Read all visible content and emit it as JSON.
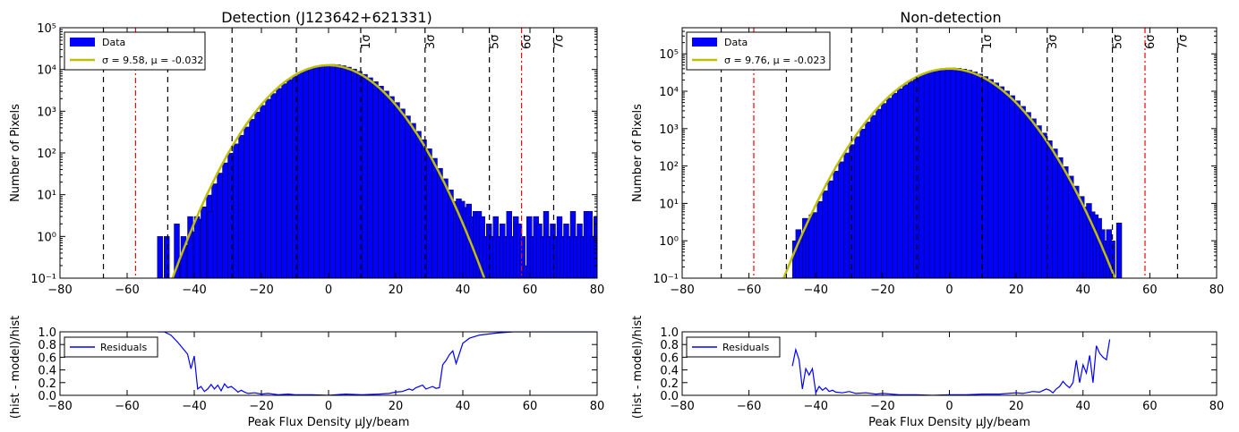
{
  "chart_data": [
    {
      "type": "bar",
      "title": "Detection (J123642+621331)",
      "xlabel": "",
      "ylabel": "Number of Pixels",
      "xlim": [
        -80,
        80
      ],
      "ylim": [
        0.1,
        100000
      ],
      "yscale": "log",
      "xticks": [
        "−80",
        "−60",
        "−40",
        "−20",
        "0",
        "20",
        "40",
        "60",
        "80"
      ],
      "yticks": [
        "10⁻¹",
        "10⁰",
        "10¹",
        "10²",
        "10³",
        "10⁴",
        "10⁵"
      ],
      "bar_color": "#0000ff",
      "fit_color": "#bfbf00",
      "legend_position": "top-left",
      "legend": {
        "data": "Data",
        "fit": "σ = 9.58, μ = -0.032"
      },
      "fit": {
        "sigma": 9.58,
        "mu": -0.032
      },
      "sigma_lines": {
        "labels": [
          "1σ",
          "3σ",
          "5σ",
          "6σ",
          "7σ"
        ]
      },
      "tail_bars": {
        "x": [
          -51,
          -49,
          -46,
          -44,
          -42,
          -40,
          -38,
          -36,
          38,
          39,
          40,
          41,
          42,
          43,
          44,
          45,
          46,
          47,
          48,
          49,
          50,
          51,
          52,
          53,
          54,
          55,
          56,
          57,
          58,
          59,
          60,
          61,
          62,
          63,
          64,
          65,
          66,
          67,
          68,
          69,
          70,
          71,
          72,
          73,
          74,
          75,
          76,
          77,
          78,
          79
        ],
        "y": [
          1,
          1,
          2,
          1,
          3,
          3,
          5,
          4,
          8,
          7,
          5,
          6,
          3,
          4,
          4,
          3,
          1,
          2,
          1,
          3,
          1,
          2,
          1,
          4,
          1,
          3,
          2,
          1,
          0.2,
          3,
          1,
          3,
          2,
          1,
          4,
          1,
          2,
          1,
          3,
          1,
          2,
          1,
          4,
          1,
          2,
          1,
          4,
          4,
          1,
          3
        ]
      },
      "residual_panel": {
        "xlabel": "Peak Flux Density μJy/beam",
        "ylabel": "(hist - model)/hist",
        "ylim": [
          0,
          1
        ],
        "yticks": [
          "0.0",
          "0.2",
          "0.4",
          "0.6",
          "0.8",
          "1.0"
        ],
        "legend": "Residuals",
        "line_color": "#0000ff",
        "x": [
          -51,
          -49,
          -47,
          -45,
          -42,
          -41,
          -40,
          -39,
          -38,
          -37,
          -36,
          -35,
          -34,
          -33,
          -32,
          -31,
          -30,
          -29,
          -28,
          -27,
          -26,
          -25,
          -24,
          -22,
          -20,
          -18,
          -15,
          -12,
          -10,
          -5,
          0,
          5,
          10,
          15,
          18,
          20,
          22,
          24,
          25,
          26,
          27,
          28,
          29,
          30,
          31,
          32,
          33,
          34,
          35,
          36,
          37,
          38,
          40,
          42,
          45,
          50,
          55,
          60,
          65,
          70,
          75,
          80
        ],
        "y": [
          1.0,
          1.0,
          0.95,
          0.84,
          0.65,
          0.42,
          0.62,
          0.1,
          0.14,
          0.06,
          0.1,
          0.17,
          0.1,
          0.16,
          0.07,
          0.18,
          0.12,
          0.14,
          0.1,
          0.05,
          0.08,
          0.05,
          0.03,
          0.04,
          0.02,
          0.03,
          0.01,
          0.02,
          0.01,
          0.01,
          0.0,
          0.02,
          0.01,
          0.02,
          0.03,
          0.05,
          0.06,
          0.1,
          0.08,
          0.12,
          0.14,
          0.16,
          0.1,
          0.12,
          0.14,
          0.11,
          0.12,
          0.48,
          0.55,
          0.64,
          0.7,
          0.5,
          0.82,
          0.9,
          0.95,
          0.98,
          1.0,
          1.0,
          1.0,
          1.0,
          1.0,
          1.0
        ]
      }
    },
    {
      "type": "bar",
      "title": "Non-detection",
      "xlabel": "",
      "ylabel": "Number of Pixels",
      "xlim": [
        -80,
        80
      ],
      "ylim": [
        0.1,
        500000
      ],
      "yscale": "log",
      "xticks": [
        "−80",
        "−60",
        "−40",
        "−20",
        "0",
        "20",
        "40",
        "60",
        "80"
      ],
      "yticks": [
        "10⁻¹",
        "10⁰",
        "10¹",
        "10²",
        "10³",
        "10⁴",
        "10⁵"
      ],
      "bar_color": "#0000ff",
      "fit_color": "#bfbf00",
      "legend_position": "top-left",
      "legend": {
        "data": "Data",
        "fit": "σ = 9.76, μ = -0.023"
      },
      "fit": {
        "sigma": 9.76,
        "mu": -0.023
      },
      "sigma_lines": {
        "labels": [
          "1σ",
          "3σ",
          "5σ",
          "6σ",
          "7σ"
        ]
      },
      "tail_bars": {
        "x": [
          -47,
          -46,
          -45,
          -44,
          -43,
          -42,
          40,
          41,
          42,
          43,
          44,
          45,
          46,
          47,
          48,
          50
        ],
        "y": [
          1,
          2,
          1,
          4,
          3,
          5,
          8,
          10,
          6,
          5,
          4,
          2,
          1,
          2,
          1,
          3
        ]
      },
      "residual_panel": {
        "xlabel": "Peak Flux Density μJy/beam",
        "ylabel": "(hist - model)/hist",
        "ylim": [
          0,
          1
        ],
        "yticks": [
          "0.0",
          "0.2",
          "0.4",
          "0.6",
          "0.8",
          "1.0"
        ],
        "legend": "Residuals",
        "line_color": "#0000ff",
        "x": [
          -47,
          -46,
          -45,
          -44,
          -43,
          -42,
          -41,
          -40,
          -39,
          -38,
          -37,
          -36,
          -35,
          -34,
          -32,
          -30,
          -28,
          -25,
          -22,
          -20,
          -15,
          -10,
          -5,
          0,
          5,
          10,
          15,
          20,
          22,
          25,
          27,
          29,
          30,
          31,
          32,
          33,
          34,
          35,
          36,
          37,
          38,
          39,
          40,
          41,
          42,
          43,
          44,
          45,
          46,
          47,
          48
        ],
        "y": [
          0.46,
          0.72,
          0.56,
          0.1,
          0.42,
          0.32,
          0.42,
          0.04,
          0.14,
          0.08,
          0.12,
          0.06,
          0.08,
          0.05,
          0.04,
          0.06,
          0.03,
          0.04,
          0.02,
          0.03,
          0.01,
          0.01,
          0.0,
          0.01,
          0.01,
          0.02,
          0.02,
          0.04,
          0.03,
          0.06,
          0.05,
          0.1,
          0.08,
          0.04,
          0.1,
          0.14,
          0.22,
          0.16,
          0.12,
          0.2,
          0.55,
          0.2,
          0.48,
          0.35,
          0.63,
          0.2,
          0.78,
          0.66,
          0.6,
          0.56,
          0.88
        ]
      }
    }
  ]
}
